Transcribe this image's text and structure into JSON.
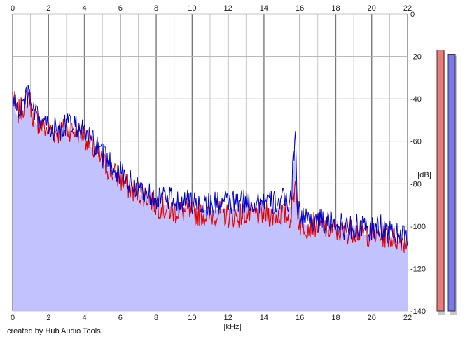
{
  "credit": "created by Hub Audio Tools",
  "colors": {
    "background": "#ffffff",
    "fill_area": "#c2c2ff",
    "grid": "#b0b0b0",
    "grid_major": "#7a7a7a",
    "channel_left": "#e00000",
    "channel_right": "#0000c8",
    "meter_left": "#ee7a7a",
    "meter_right": "#7a7aee"
  },
  "chart_data": {
    "type": "line",
    "xlabel": "[kHz]",
    "ylabel": "[dB]",
    "xlim": [
      0,
      22
    ],
    "ylim": [
      -140,
      0
    ],
    "x_ticks": [
      0,
      2,
      4,
      6,
      8,
      10,
      12,
      14,
      16,
      18,
      20,
      22
    ],
    "y_ticks": [
      0,
      -20,
      -40,
      -60,
      -80,
      -100,
      -120,
      -140
    ],
    "grid": true,
    "x_unit_step": 1,
    "series": [
      {
        "color": "#e00000",
        "x": [
          0,
          0.25,
          0.5,
          0.75,
          0.9,
          1.1,
          1.5,
          2,
          2.5,
          3,
          3.5,
          4,
          4.5,
          5,
          5.5,
          6,
          6.5,
          7,
          7.5,
          8,
          8.5,
          9,
          9.5,
          10,
          10.5,
          11,
          11.5,
          12,
          12.5,
          13,
          13.5,
          14,
          14.5,
          15,
          15.5,
          15.75,
          15.85,
          16,
          16.5,
          17,
          17.5,
          18,
          18.5,
          19,
          19.5,
          20,
          20.5,
          21,
          21.5,
          22
        ],
        "y": [
          -38,
          -47,
          -45,
          -40,
          -38,
          -47,
          -52,
          -55,
          -56,
          -54,
          -55,
          -57,
          -64,
          -70,
          -74,
          -78,
          -82,
          -84,
          -86,
          -90,
          -92,
          -93,
          -93,
          -94,
          -94,
          -95,
          -94,
          -95,
          -95,
          -94,
          -95,
          -94,
          -95,
          -94,
          -96,
          -78,
          -94,
          -99,
          -100,
          -99,
          -101,
          -102,
          -103,
          -102,
          -103,
          -104,
          -104,
          -105,
          -106,
          -107
        ]
      },
      {
        "color": "#0000c8",
        "x": [
          0,
          0.25,
          0.5,
          0.75,
          0.9,
          1.1,
          1.5,
          2,
          2.5,
          3,
          3.5,
          4,
          4.5,
          5,
          5.5,
          6,
          6.5,
          7,
          7.5,
          8,
          8.5,
          9,
          9.5,
          10,
          10.5,
          11,
          11.5,
          12,
          12.5,
          13,
          13.5,
          14,
          14.5,
          15,
          15.5,
          15.75,
          15.85,
          16,
          16.5,
          17,
          17.5,
          18,
          18.5,
          19,
          19.5,
          20,
          20.5,
          21,
          21.5,
          22
        ],
        "y": [
          -37,
          -46,
          -44,
          -40,
          -38,
          -46,
          -51,
          -53,
          -55,
          -52,
          -53,
          -56,
          -61,
          -67,
          -71,
          -75,
          -79,
          -82,
          -84,
          -86,
          -87,
          -88,
          -88,
          -89,
          -89,
          -90,
          -89,
          -89,
          -89,
          -88,
          -89,
          -88,
          -89,
          -88,
          -88,
          -54,
          -88,
          -95,
          -97,
          -97,
          -99,
          -98,
          -101,
          -100,
          -101,
          -102,
          -100,
          -103,
          -104,
          -106
        ]
      }
    ],
    "level_meter": {
      "values_db": [
        -17,
        -19
      ]
    }
  }
}
